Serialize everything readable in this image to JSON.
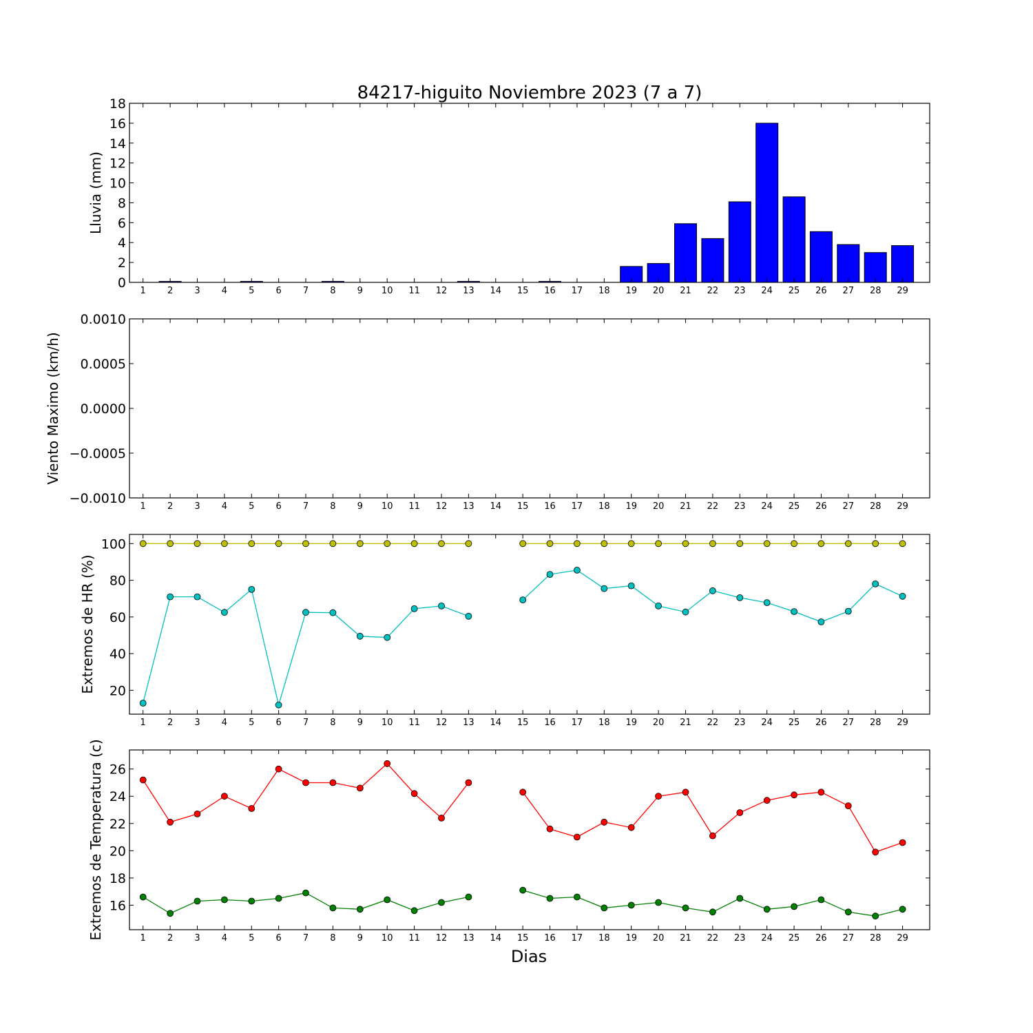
{
  "title": "84217-higuito Noviembre 2023  (7 a 7)",
  "xlabel": "Dias",
  "days": [
    "1",
    "2",
    "3",
    "4",
    "5",
    "6",
    "7",
    "8",
    "9",
    "10",
    "11",
    "12",
    "13",
    "14",
    "15",
    "16",
    "17",
    "18",
    "19",
    "20",
    "21",
    "22",
    "23",
    "24",
    "25",
    "26",
    "27",
    "28",
    "29"
  ],
  "chart_data": [
    {
      "type": "bar",
      "ylabel": "Lluvia (mm)",
      "ylim": [
        0,
        18
      ],
      "yticks": [
        "0",
        "2",
        "4",
        "6",
        "8",
        "10",
        "12",
        "14",
        "16",
        "18"
      ],
      "yticks_values": [
        0,
        2,
        4,
        6,
        8,
        10,
        12,
        14,
        16,
        18
      ],
      "series": [
        {
          "color": "#0000ff",
          "values": [
            0,
            0.1,
            0,
            0,
            0.1,
            0,
            0,
            0.1,
            0,
            0,
            0,
            0,
            0.1,
            0,
            0,
            0.1,
            0,
            0,
            1.6,
            1.9,
            5.9,
            4.4,
            8.1,
            16.0,
            8.6,
            5.1,
            3.8,
            3.0,
            3.7
          ]
        }
      ]
    },
    {
      "type": "line",
      "ylabel": "Viento Maximo (km/h)",
      "ylim": [
        -0.001,
        0.001
      ],
      "yticks": [
        "0.0010",
        "0.0005",
        "0.0000",
        "−0.0005",
        "−0.0010"
      ],
      "yticks_values": [
        0.001,
        0.0005,
        0,
        -0.0005,
        -0.001
      ],
      "series": []
    },
    {
      "type": "line",
      "ylabel": "Extremos de HR (%)",
      "ylim": [
        7,
        105
      ],
      "yticks": [
        "20",
        "40",
        "60",
        "80",
        "100"
      ],
      "yticks_values": [
        20,
        40,
        60,
        80,
        100
      ],
      "series": [
        {
          "color": "#bfbf00",
          "values": [
            100,
            100,
            100,
            100,
            100,
            100,
            100,
            100,
            100,
            100,
            100,
            100,
            100,
            null,
            100,
            100,
            100,
            100,
            100,
            100,
            100,
            100,
            100,
            100,
            100,
            100,
            100,
            100,
            100
          ]
        },
        {
          "color": "#00bfbf",
          "values": [
            13,
            71,
            71,
            62.5,
            75,
            12,
            62.5,
            62.3,
            49.5,
            48.8,
            64.5,
            66,
            60.4,
            null,
            69.3,
            83.2,
            85.5,
            75.5,
            77,
            66,
            62.7,
            74.3,
            70.5,
            67.8,
            62.9,
            57.3,
            63.1,
            78,
            71.3
          ]
        }
      ]
    },
    {
      "type": "line",
      "ylabel": "Extremos de Temperatura (c)",
      "ylim": [
        14.2,
        27.4
      ],
      "yticks": [
        "16",
        "18",
        "20",
        "22",
        "24",
        "26"
      ],
      "yticks_values": [
        16,
        18,
        20,
        22,
        24,
        26
      ],
      "series": [
        {
          "color": "#ff0000",
          "values": [
            25.2,
            22.1,
            22.7,
            24,
            23.1,
            26,
            25,
            25,
            24.6,
            26.4,
            24.2,
            22.4,
            25,
            null,
            24.3,
            21.6,
            21,
            22.1,
            21.7,
            24,
            24.3,
            21.1,
            22.8,
            23.7,
            24.1,
            24.3,
            23.3,
            19.9,
            20.6
          ]
        },
        {
          "color": "#008000",
          "values": [
            16.6,
            15.4,
            16.3,
            16.4,
            16.3,
            16.5,
            16.9,
            15.8,
            15.7,
            16.4,
            15.6,
            16.2,
            16.6,
            null,
            17.1,
            16.5,
            16.6,
            15.8,
            16,
            16.2,
            15.8,
            15.5,
            16.5,
            15.7,
            15.9,
            16.4,
            15.5,
            15.2,
            15.7
          ]
        }
      ]
    }
  ]
}
